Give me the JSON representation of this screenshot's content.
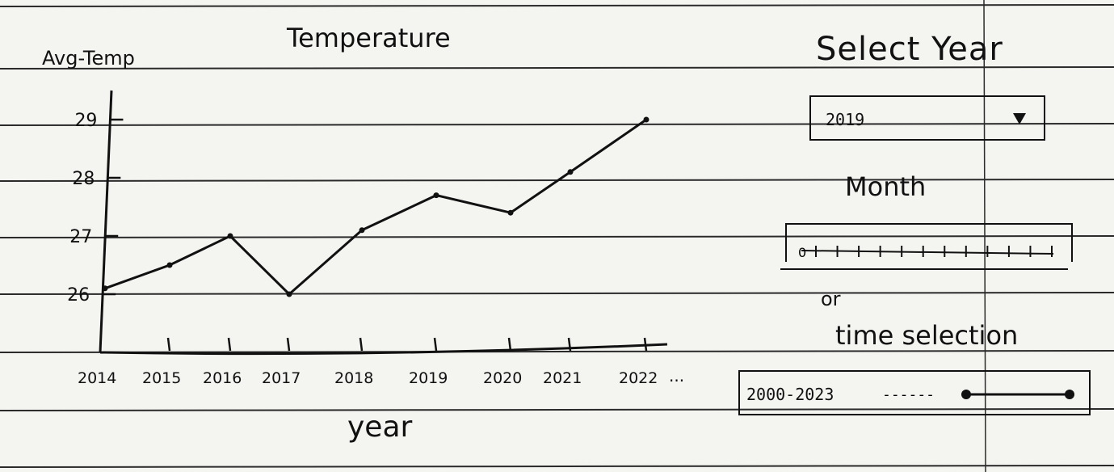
{
  "chart_data": {
    "type": "line",
    "title": "Temperature",
    "xlabel": "year",
    "ylabel": "Avg-Temp",
    "x": [
      "2014",
      "2015",
      "2016",
      "2017",
      "2018",
      "2019",
      "2020",
      "2021",
      "2022"
    ],
    "values": [
      26.1,
      26.5,
      27.0,
      26.0,
      27.1,
      27.7,
      27.4,
      28.1,
      29.0
    ],
    "x_more": "...",
    "yticks": [
      26,
      27,
      28,
      29
    ],
    "ytick_labels": [
      "26",
      "27",
      "28",
      "29"
    ],
    "ylim": [
      25,
      29.6
    ],
    "grid": false
  },
  "controls": {
    "select_year_label": "Select Year",
    "select_year_value": "2019",
    "month_label": "Month",
    "month_slider_min_label": "0",
    "month_tick_count": 12,
    "or_label": "or",
    "time_selection_label": "time selection",
    "time_range_text": "2000-2023",
    "time_range_dashes": "------"
  }
}
